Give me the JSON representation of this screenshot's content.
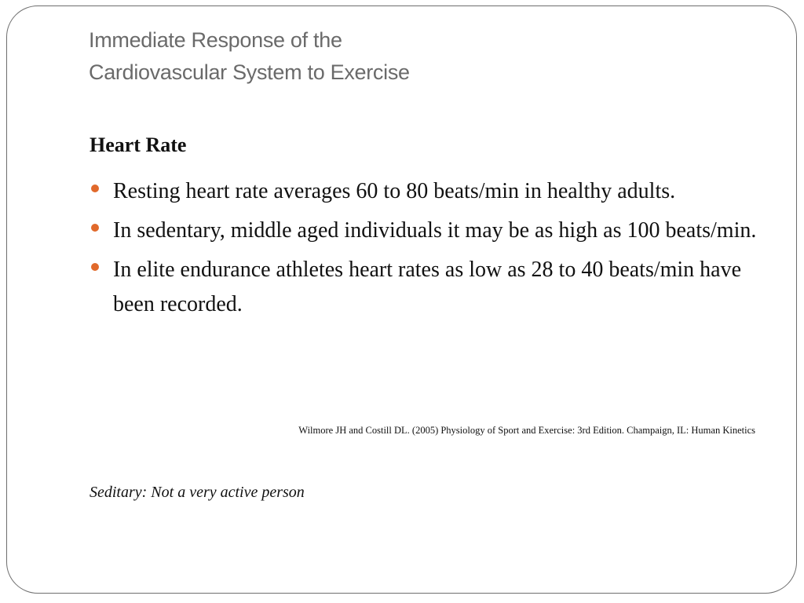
{
  "slide": {
    "title_lines": [
      "Immediate Response of the",
      "Cardiovascular System to Exercise"
    ],
    "section_heading": "Heart Rate",
    "bullets": [
      "Resting heart rate averages 60 to 80 beats/min in healthy adults.",
      "In sedentary, middle aged individuals it may be as high as 100 beats/min.",
      "In elite endurance athletes heart rates as low as 28 to 40 beats/min have been recorded."
    ],
    "citation": "Wilmore JH and Costill DL. (2005) Physiology of Sport and Exercise: 3rd Edition. Champaign, IL: Human Kinetics",
    "note": "Seditary: Not a very active person"
  },
  "colors": {
    "title": "#6a6a6a",
    "body_text": "#111111",
    "bullet": "#e1692b",
    "frame_border": "#6e6e6e"
  }
}
